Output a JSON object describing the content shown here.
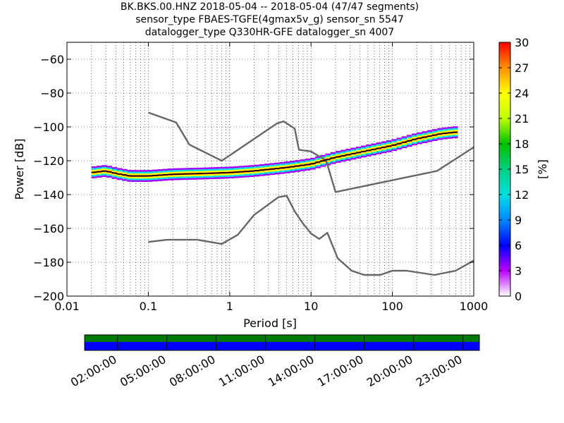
{
  "header": {
    "line1": "BK.BKS.00.HNZ   2018-05-04 -- 2018-05-04  (47/47 segments)",
    "line2": "sensor_type FBAES-TGFE(4gmax5v_g) sensor_sn 5547",
    "line3": "datalogger_type Q330HR-GFE datalogger_sn 4007"
  },
  "colorbar": {
    "label": "[%]",
    "ticks": [
      "0",
      "3",
      "6",
      "9",
      "12",
      "15",
      "18",
      "21",
      "24",
      "27",
      "30"
    ]
  },
  "timeline": {
    "ticks": [
      "02:00:00",
      "05:00:00",
      "08:00:00",
      "11:00:00",
      "14:00:00",
      "17:00:00",
      "20:00:00",
      "23:00:00"
    ],
    "upper_color": "#007a00",
    "lower_color": "#0000ff"
  },
  "chart_data": {
    "type": "line",
    "xlabel": "Period [s]",
    "ylabel": "Power [dB]",
    "xscale": "log",
    "xlim": [
      0.01,
      1000
    ],
    "ylim": [
      -200,
      -50
    ],
    "x_tick_labels": [
      "0.01",
      "0.1",
      "1",
      "10",
      "100",
      "1000"
    ],
    "y_ticks": [
      -60,
      -80,
      -100,
      -120,
      -140,
      -160,
      -180,
      -200
    ],
    "grid": true,
    "series": [
      {
        "color": "#666666",
        "x": [
          0.1,
          0.22,
          0.32,
          0.8,
          3.8,
          4.6,
          6.3,
          7.1,
          10.0,
          15.4,
          20.0,
          354.8,
          1000
        ],
        "y": [
          -91.5,
          -97.4,
          -110.5,
          -120.0,
          -98.0,
          -96.7,
          -101.0,
          -113.5,
          -114.5,
          -120.0,
          -138.5,
          -126.0,
          -112.0
        ]
      },
      {
        "color": "#666666",
        "x": [
          0.1,
          0.17,
          0.4,
          0.8,
          1.26,
          2.0,
          3.98,
          5.01,
          6.31,
          7.94,
          10.0,
          12.6,
          15.85,
          21.3,
          31.6,
          45.0,
          70.8,
          100.0,
          150.0,
          328.6,
          600.0,
          1000
        ],
        "y": [
          -168.0,
          -166.7,
          -166.7,
          -169.2,
          -163.7,
          -152.0,
          -141.5,
          -140.7,
          -150.0,
          -157.0,
          -163.0,
          -166.2,
          -162.6,
          -177.7,
          -185.0,
          -187.5,
          -187.5,
          -185.0,
          -185.0,
          -187.5,
          -185.0,
          -179.0
        ]
      },
      {
        "color": "#000000",
        "x": [
          0.02,
          0.03,
          0.04,
          0.06,
          0.1,
          0.2,
          0.5,
          1.0,
          2.0,
          5.0,
          10.0,
          20.0,
          50.0,
          100.0,
          200.0,
          400.0,
          630.0
        ],
        "y": [
          -127,
          -126,
          -127.5,
          -129,
          -129,
          -128,
          -127.5,
          -127,
          -126,
          -124,
          -122,
          -118,
          -114,
          -111,
          -107,
          -104,
          -103
        ]
      }
    ],
    "colorbar_range": [
      0,
      30
    ],
    "colorbar_label": "[%]"
  }
}
